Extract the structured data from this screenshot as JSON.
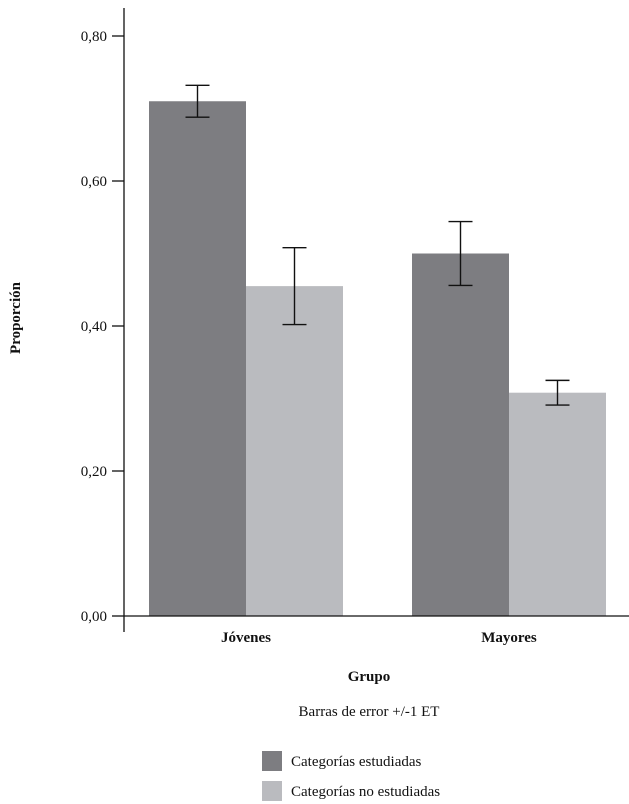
{
  "chart_data": {
    "type": "bar",
    "categories": [
      "Jóvenes",
      "Mayores"
    ],
    "series": [
      {
        "name": "Categorías estudiadas",
        "color": "#7d7d81",
        "values": [
          0.71,
          0.5
        ],
        "error": [
          0.022,
          0.044
        ]
      },
      {
        "name": "Categorías no estudiadas",
        "color": "#babbbf",
        "values": [
          0.455,
          0.308
        ],
        "error": [
          0.053,
          0.017
        ]
      }
    ],
    "xlabel": "Grupo",
    "ylabel": "Proporción",
    "note": "Barras de error +/-1 ET",
    "ylim": [
      0,
      0.84
    ],
    "yticks": [
      0.0,
      0.2,
      0.4,
      0.6,
      0.8
    ],
    "ytick_labels": [
      "0,00",
      "0,20",
      "0,40",
      "0,60",
      "0,80"
    ],
    "grid": false,
    "legend_position": "bottom"
  }
}
